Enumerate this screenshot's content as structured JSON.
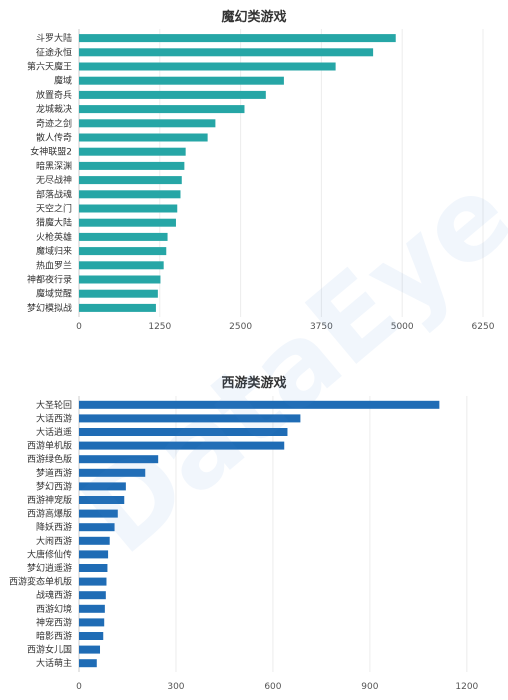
{
  "watermark": "DataEye",
  "chart_data": [
    {
      "type": "bar",
      "orientation": "horizontal",
      "title": "魔幻类游戏",
      "color": "#26a6a6",
      "categories": [
        "斗罗大陆",
        "征途永恒",
        "第六天魔王",
        "魔域",
        "放置奇兵",
        "龙城裁决",
        "奇迹之剑",
        "散人传奇",
        "女神联盟2",
        "暗黑深渊",
        "无尽战神",
        "部落战魂",
        "天空之门",
        "猎魔大陆",
        "火枪英雄",
        "魔域归来",
        "热血罗兰",
        "神都夜行录",
        "魔域觉醒",
        "梦幻模拟战"
      ],
      "values": [
        4900,
        4550,
        3970,
        3170,
        2890,
        2560,
        2110,
        1990,
        1650,
        1630,
        1590,
        1570,
        1520,
        1500,
        1370,
        1350,
        1310,
        1260,
        1220,
        1190
      ],
      "ticks": [
        "0",
        "1250",
        "2500",
        "3750",
        "5000",
        "6250"
      ],
      "xlim": [
        0,
        6250
      ],
      "grid": true
    },
    {
      "type": "bar",
      "orientation": "horizontal",
      "title": "西游类游戏",
      "color": "#1f6cb5",
      "categories": [
        "大圣轮回",
        "大话西游",
        "大话逍遥",
        "西游单机版",
        "西游绿色版",
        "梦道西游",
        "梦幻西游",
        "西游神宠版",
        "西游高爆版",
        "降妖西游",
        "大闹西游",
        "大唐修仙传",
        "梦幻逍遥游",
        "西游変态单机版",
        "战魂西游",
        "西游幻境",
        "神宠西游",
        "暗影西游",
        "西游女儿国",
        "大话萌主"
      ],
      "values": [
        1115,
        685,
        645,
        635,
        245,
        205,
        145,
        140,
        120,
        110,
        95,
        90,
        88,
        85,
        83,
        80,
        78,
        75,
        65,
        55
      ],
      "ticks": [
        "0",
        "300",
        "600",
        "900",
        "1200"
      ],
      "xlim": [
        0,
        1250
      ],
      "grid": true
    }
  ]
}
